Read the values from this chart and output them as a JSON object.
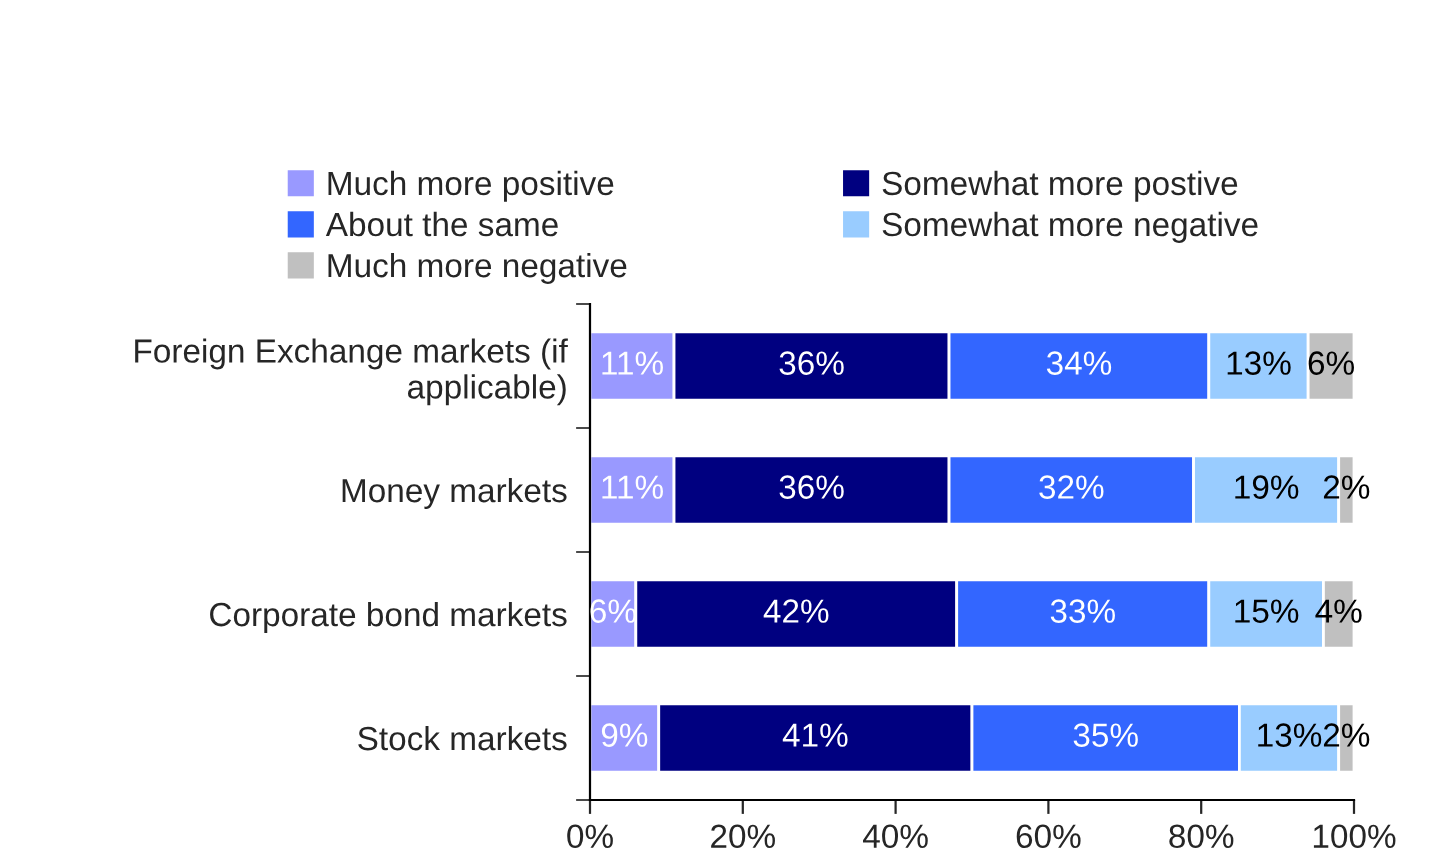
{
  "chart_data": {
    "type": "bar",
    "orientation": "horizontal",
    "stacked": true,
    "categories": [
      "Foreign Exchange markets (if applicable)",
      "Money markets",
      "Corporate bond markets",
      "Stock markets"
    ],
    "series": [
      {
        "name": "Much more positive",
        "color": "#9999ff",
        "values": [
          11,
          11,
          6,
          9
        ],
        "value_labels": [
          "11%",
          "11%",
          "6%",
          "9%"
        ]
      },
      {
        "name": "Somewhat more postive",
        "color": "#000080",
        "values": [
          36,
          36,
          42,
          41
        ],
        "value_labels": [
          "36%",
          "36%",
          "42%",
          "41%"
        ]
      },
      {
        "name": "About the same",
        "color": "#3366ff",
        "values": [
          34,
          32,
          33,
          35
        ],
        "value_labels": [
          "34%",
          "32%",
          "33%",
          "35%"
        ]
      },
      {
        "name": "Somewhat more negative",
        "color": "#99ccff",
        "values": [
          13,
          19,
          15,
          13
        ],
        "value_labels": [
          "13%",
          "19%",
          "15%",
          "13%"
        ]
      },
      {
        "name": "Much more negative",
        "color": "#c0c0c0",
        "values": [
          6,
          2,
          4,
          2
        ],
        "value_labels": [
          "6%",
          "2%",
          "4%",
          "2%"
        ]
      }
    ],
    "xlim": [
      0,
      100
    ],
    "xticks": [
      {
        "value": 0,
        "label": "0%"
      },
      {
        "value": 20,
        "label": "20%"
      },
      {
        "value": 40,
        "label": "40%"
      },
      {
        "value": 60,
        "label": "60%"
      },
      {
        "value": 80,
        "label": "80%"
      },
      {
        "value": 100,
        "label": "100%"
      }
    ],
    "legend": "top",
    "grid": false
  }
}
